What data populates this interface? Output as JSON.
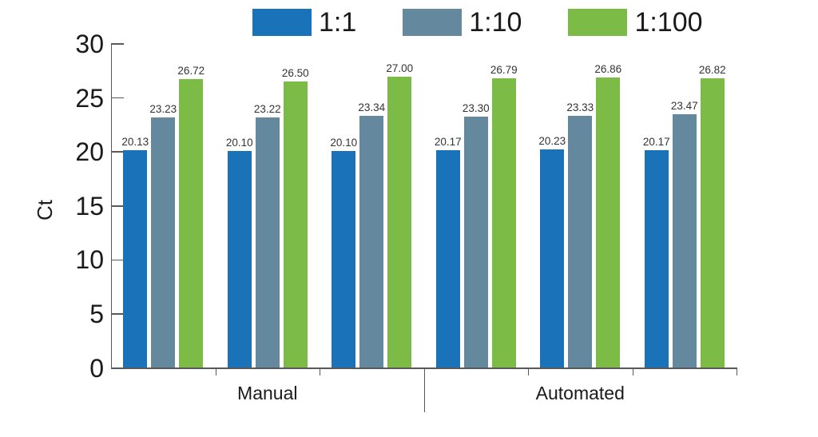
{
  "chart_data": {
    "type": "bar",
    "title": "",
    "xlabel": "",
    "ylabel": "Ct",
    "ylim": [
      0,
      30
    ],
    "yticks": [
      0,
      5,
      10,
      15,
      20,
      25,
      30
    ],
    "grid": false,
    "legend_position": "top",
    "value_labels": true,
    "groups": [
      "Manual",
      "Automated"
    ],
    "replicates_per_group": 3,
    "series": [
      {
        "name": "1:1",
        "color": "#1a73b8",
        "values": [
          20.13,
          20.1,
          20.1,
          20.17,
          20.23,
          20.17
        ]
      },
      {
        "name": "1:10",
        "color": "#64899e",
        "values": [
          23.23,
          23.22,
          23.34,
          23.3,
          23.33,
          23.47
        ]
      },
      {
        "name": "1:100",
        "color": "#7cbb46",
        "values": [
          26.72,
          26.5,
          27.0,
          26.79,
          26.86,
          26.82
        ]
      }
    ],
    "axis_color": "#595959",
    "text_color": "#1a1a1a",
    "value_label_color": "#333333"
  }
}
